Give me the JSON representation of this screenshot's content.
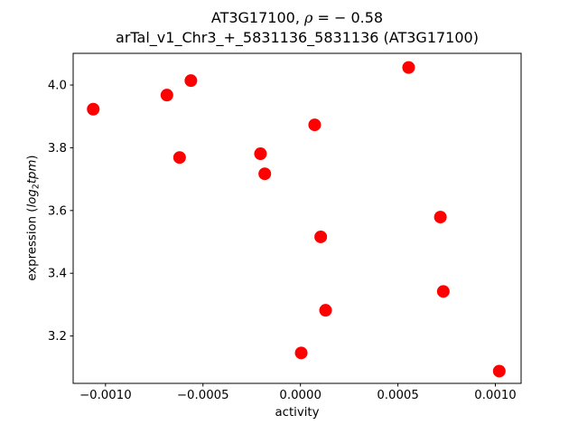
{
  "title": {
    "line1_prefix": "AT3G17100, ",
    "line1_rho": "ρ",
    "line1_rest": " = − 0.58",
    "line2": "arTal_v1_Chr3_+_5831136_5831136 (AT3G17100)"
  },
  "axes": {
    "xlabel": "activity",
    "ylabel_prefix": "expression (",
    "ylabel_log": "log",
    "ylabel_sub": "2",
    "ylabel_tpm": "tpm",
    "ylabel_suffix": ")"
  },
  "chart_data": {
    "type": "scatter",
    "title": "AT3G17100, ρ = − 0.58\narTal_v1_Chr3_+_5831136_5831136 (AT3G17100)",
    "xlabel": "activity",
    "ylabel": "expression (log2tpm)",
    "marker_color": "#ff0000",
    "marker_radius_px": 7,
    "grid": false,
    "legend": null,
    "xlim": [
      -0.001166,
      0.001132
    ],
    "ylim": [
      3.049,
      4.101
    ],
    "xtick_values": [
      -0.001,
      -0.0005,
      0.0,
      0.0005,
      0.001
    ],
    "xtick_labels": [
      "−0.0010",
      "−0.0005",
      "0.0000",
      "0.0005",
      "0.0010"
    ],
    "ytick_values": [
      3.2,
      3.4,
      3.6,
      3.8,
      4.0
    ],
    "ytick_labels": [
      "3.2",
      "3.4",
      "3.6",
      "3.8",
      "4.0"
    ],
    "points": [
      {
        "x": -0.001063,
        "y": 3.923
      },
      {
        "x": -0.000685,
        "y": 3.968
      },
      {
        "x": -0.000562,
        "y": 4.014
      },
      {
        "x": -0.00062,
        "y": 3.769
      },
      {
        "x": -0.000205,
        "y": 3.781
      },
      {
        "x": -0.000183,
        "y": 3.717
      },
      {
        "x": 7.3e-05,
        "y": 3.873
      },
      {
        "x": 0.000555,
        "y": 4.056
      },
      {
        "x": 0.000718,
        "y": 3.579
      },
      {
        "x": 0.000733,
        "y": 3.342
      },
      {
        "x": 0.000104,
        "y": 3.516
      },
      {
        "x": 0.000129,
        "y": 3.282
      },
      {
        "x": 4e-06,
        "y": 3.146
      },
      {
        "x": 0.00102,
        "y": 3.088
      }
    ]
  }
}
